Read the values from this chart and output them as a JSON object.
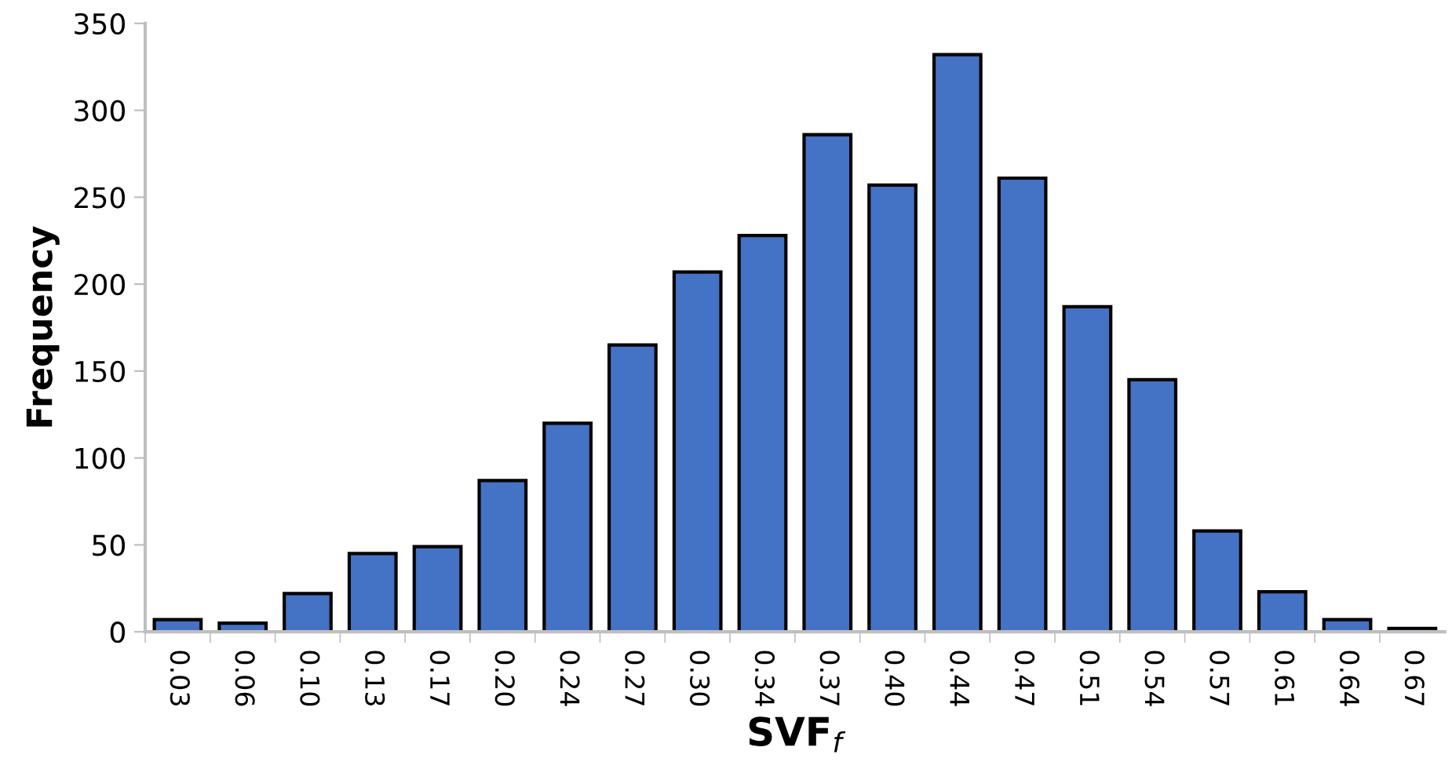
{
  "chart_data": {
    "type": "bar",
    "xlabel": "SVF$_{f}$",
    "ylabel": "Frequency",
    "categories": [
      "0.03",
      "0.06",
      "0.10",
      "0.13",
      "0.17",
      "0.20",
      "0.24",
      "0.27",
      "0.30",
      "0.34",
      "0.37",
      "0.40",
      "0.44",
      "0.47",
      "0.51",
      "0.54",
      "0.57",
      "0.61",
      "0.64",
      "0.67"
    ],
    "values": [
      7,
      5,
      22,
      45,
      49,
      87,
      120,
      165,
      207,
      228,
      286,
      257,
      332,
      261,
      187,
      145,
      58,
      23,
      7,
      2
    ],
    "color": "#4472c4",
    "ylim": [
      0,
      350
    ],
    "yticks": [
      0,
      50,
      100,
      150,
      200,
      250,
      300,
      350
    ],
    "grid": false,
    "legend": false
  }
}
